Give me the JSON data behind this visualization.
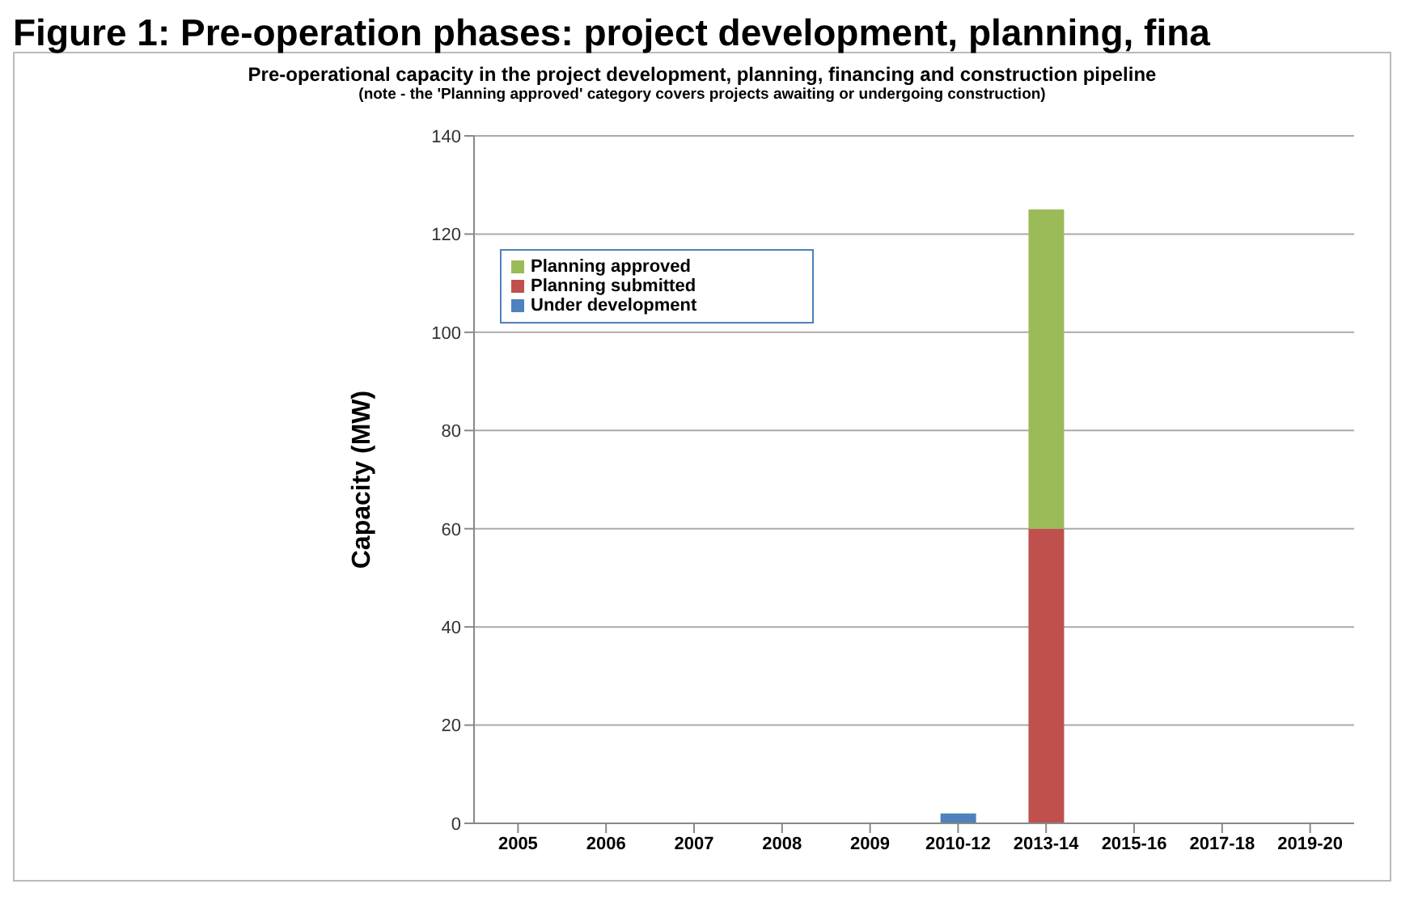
{
  "chart_data": {
    "type": "bar",
    "title": "Figure 1: Pre-operation phases: project development, planning, fina",
    "subtitle": "Pre-operational capacity in the project development, planning, financing and construction pipeline",
    "annotations": [
      "(note - the 'Planning approved' category  covers projects awaiting or undergoing construction)"
    ],
    "ylabel": "Capacity (MW)",
    "categories": [
      "2005",
      "2006",
      "2007",
      "2008",
      "2009",
      "2010-12",
      "2013-14",
      "2015-16",
      "2017-18",
      "2019-20"
    ],
    "stacked": true,
    "series": [
      {
        "name": "Under development",
        "color": "#4f81bd",
        "values": [
          0,
          0,
          0,
          0,
          0,
          2,
          0,
          0,
          0,
          0
        ]
      },
      {
        "name": "Planning submitted",
        "color": "#c0504d",
        "values": [
          0,
          0,
          0,
          0,
          0,
          0,
          60,
          0,
          0,
          0
        ]
      },
      {
        "name": "Planning approved",
        "color": "#9bbb59",
        "values": [
          0,
          0,
          0,
          0,
          0,
          0,
          65,
          0,
          0,
          0
        ]
      }
    ],
    "ylim": [
      0,
      140
    ],
    "yticks": [
      0,
      20,
      40,
      60,
      80,
      100,
      120,
      140
    ],
    "grid": "y",
    "legend": "top left"
  }
}
